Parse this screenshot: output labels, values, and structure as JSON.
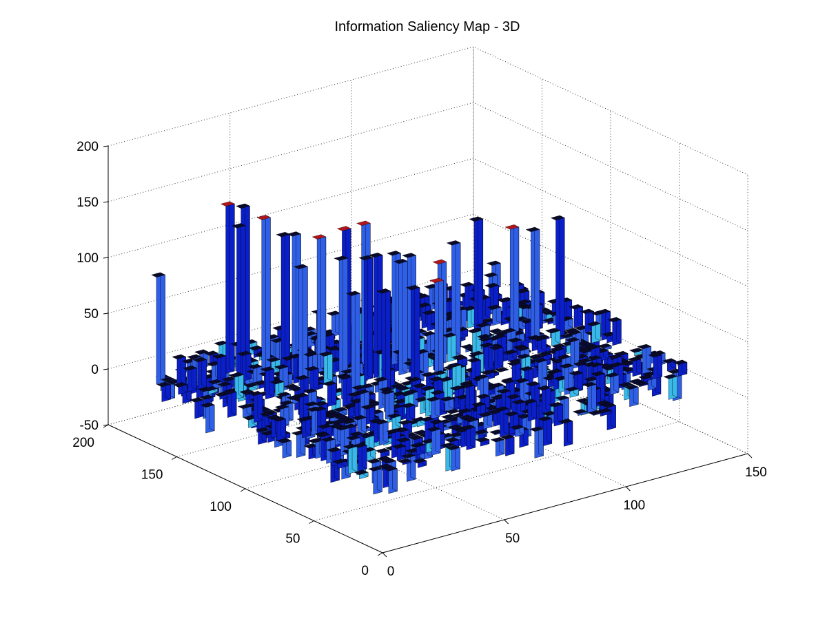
{
  "chart_data": {
    "type": "surface3d",
    "title": "Information Saliency Map - 3D",
    "xlabel": "",
    "ylabel": "",
    "zlabel": "",
    "x_ticks": [
      0,
      50,
      100,
      150
    ],
    "y_ticks": [
      0,
      50,
      100,
      150,
      200
    ],
    "z_ticks": [
      -50,
      0,
      50,
      100,
      150,
      200
    ],
    "xlim": [
      0,
      150
    ],
    "ylim": [
      0,
      200
    ],
    "zlim": [
      -50,
      200
    ],
    "grid": true,
    "colormap": "jet",
    "bar_colors": {
      "low": "#0b1fc8",
      "mid": "#2f5fe6",
      "light": "#39b8ea",
      "high": "#b0171d"
    },
    "baseline_noise_range": [
      -25,
      25
    ],
    "peaks": [
      {
        "x": 2,
        "y": 170,
        "z": 96
      },
      {
        "x": 28,
        "y": 165,
        "z": 150
      },
      {
        "x": 32,
        "y": 160,
        "z": 148
      },
      {
        "x": 26,
        "y": 155,
        "z": 135
      },
      {
        "x": 36,
        "y": 150,
        "z": 140
      },
      {
        "x": 42,
        "y": 150,
        "z": 120
      },
      {
        "x": 45,
        "y": 145,
        "z": 125
      },
      {
        "x": 53,
        "y": 140,
        "z": 120
      },
      {
        "x": 60,
        "y": 137,
        "z": 125
      },
      {
        "x": 67,
        "y": 135,
        "z": 125
      },
      {
        "x": 38,
        "y": 130,
        "z": 105
      },
      {
        "x": 50,
        "y": 125,
        "z": 110
      },
      {
        "x": 58,
        "y": 120,
        "z": 108
      },
      {
        "x": 64,
        "y": 118,
        "z": 108
      },
      {
        "x": 70,
        "y": 115,
        "z": 100
      },
      {
        "x": 75,
        "y": 128,
        "z": 98
      },
      {
        "x": 80,
        "y": 122,
        "z": 96
      },
      {
        "x": 48,
        "y": 108,
        "z": 90
      },
      {
        "x": 56,
        "y": 100,
        "z": 92
      },
      {
        "x": 66,
        "y": 100,
        "z": 88
      },
      {
        "x": 80,
        "y": 105,
        "z": 85
      },
      {
        "x": 86,
        "y": 115,
        "z": 90
      },
      {
        "x": 95,
        "y": 118,
        "z": 100
      },
      {
        "x": 110,
        "y": 130,
        "z": 105
      },
      {
        "x": 118,
        "y": 120,
        "z": 100
      },
      {
        "x": 125,
        "y": 110,
        "z": 100
      },
      {
        "x": 132,
        "y": 108,
        "z": 108
      }
    ]
  }
}
